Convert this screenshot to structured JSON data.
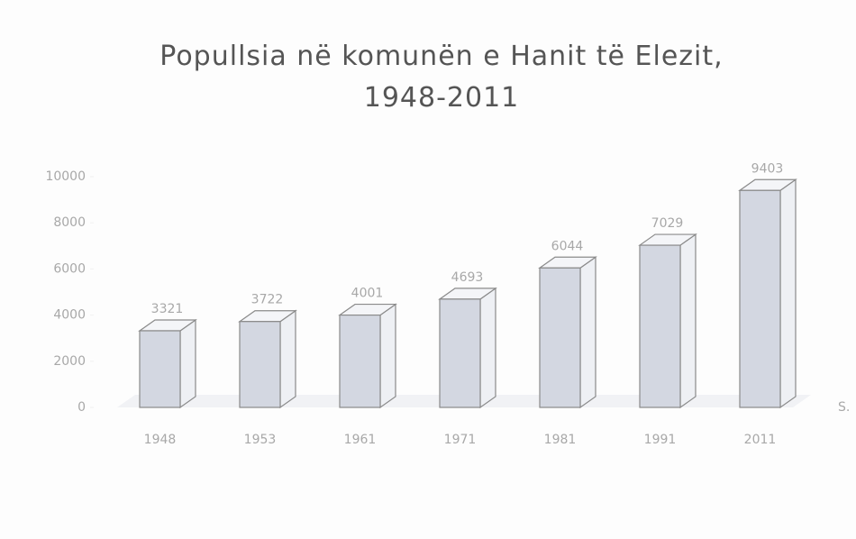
{
  "chart_data": {
    "type": "bar3d",
    "title": "Popullsia në komunën e Hanit të Elezit, 1948-2011",
    "categories": [
      "1948",
      "1953",
      "1961",
      "1971",
      "1981",
      "1991",
      "2011"
    ],
    "values": [
      3321,
      3722,
      4001,
      4693,
      6044,
      7029,
      9403
    ],
    "color": "#d3d7e1",
    "ylim": [
      0,
      10000
    ],
    "yticks": [
      0,
      2000,
      4000,
      6000,
      8000,
      10000
    ],
    "x_label": "S."
  }
}
